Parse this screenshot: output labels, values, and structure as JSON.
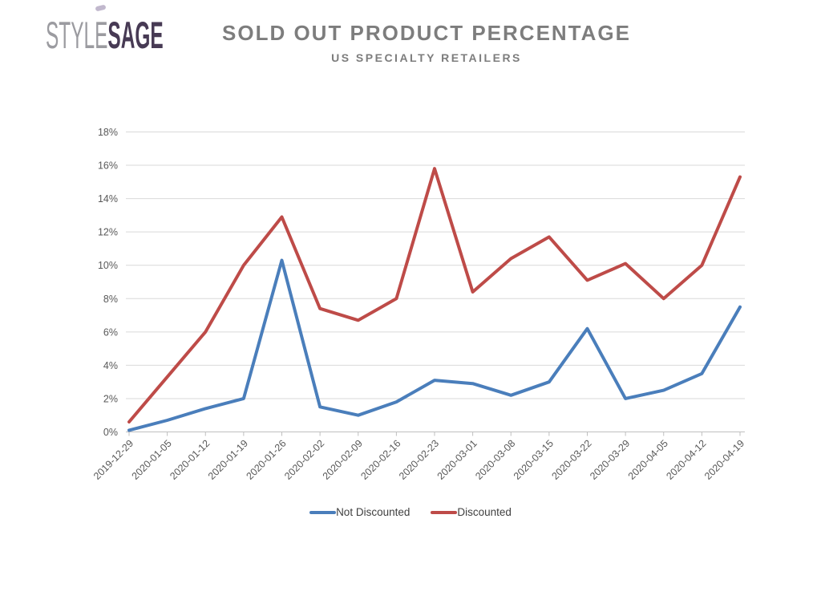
{
  "logo": {
    "part1": "STYLE",
    "part2": "SAGE"
  },
  "header": {
    "title": "SOLD OUT PRODUCT PERCENTAGE",
    "subtitle": "US SPECIALTY RETAILERS"
  },
  "chart_data": {
    "type": "line",
    "title": "SOLD OUT PRODUCT PERCENTAGE",
    "subtitle": "US SPECIALTY RETAILERS",
    "categories": [
      "2019-12-29",
      "2020-01-05",
      "2020-01-12",
      "2020-01-19",
      "2020-01-26",
      "2020-02-02",
      "2020-02-09",
      "2020-02-16",
      "2020-02-23",
      "2020-03-01",
      "2020-03-08",
      "2020-03-15",
      "2020-03-22",
      "2020-03-29",
      "2020-04-05",
      "2020-04-12",
      "2020-04-19"
    ],
    "series": [
      {
        "name": "Not Discounted",
        "color": "#4a7ebb",
        "values": [
          0.1,
          0.7,
          1.4,
          2.0,
          10.3,
          1.5,
          1.0,
          1.8,
          3.1,
          2.9,
          2.2,
          3.0,
          6.2,
          2.0,
          2.5,
          3.5,
          7.5
        ]
      },
      {
        "name": "Discounted",
        "color": "#be4b48",
        "values": [
          0.6,
          3.3,
          6.0,
          10.0,
          12.9,
          7.4,
          6.7,
          8.0,
          15.8,
          8.4,
          10.4,
          11.7,
          9.1,
          10.1,
          8.0,
          10.0,
          15.3
        ]
      }
    ],
    "ylim": [
      0,
      18
    ],
    "ytick_step": 2,
    "y_tick_suffix": "%",
    "grid": true,
    "legend_position": "bottom"
  },
  "colors": {
    "logo_style": "#9b9ba0",
    "logo_sage": "#473a54",
    "title_text": "#7d7d7d",
    "gridline": "#d9d9d9",
    "axis_line": "#bfbfbf",
    "axis_text": "#595959",
    "legend_text": "#404040"
  }
}
